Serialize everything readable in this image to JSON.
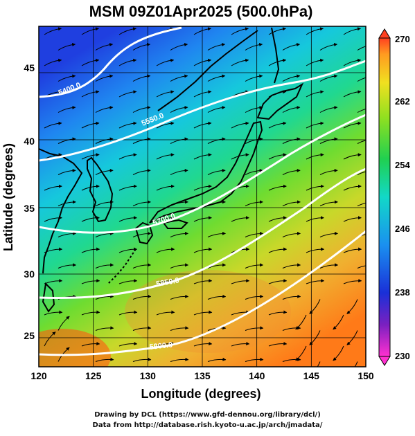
{
  "title": "MSM 09Z01Apr2025 (500.0hPa)",
  "xlabel": "Longitude (degrees)",
  "ylabel": "Latitude  (degrees)",
  "x_ticks": [
    "120",
    "125",
    "130",
    "135",
    "140",
    "145",
    "150"
  ],
  "y_ticks": [
    "25",
    "30",
    "35",
    "40",
    "45"
  ],
  "colorbar_ticks": [
    "270",
    "262",
    "254",
    "246",
    "238",
    "230"
  ],
  "contour_labels": [
    "5400.0",
    "5550.0",
    "5700.0",
    "5850.0",
    "5900.0"
  ],
  "credits": {
    "line1": "Drawing by DCL (https://www.gfd-dennou.org/library/dcl/)",
    "line2": "Data from http://database.rish.kyoto-u.ac.jp/arch/jmadata/"
  },
  "map_data": {
    "type": "heatmap",
    "field": "temperature",
    "lon_range": [
      120,
      150
    ],
    "lat_range": [
      22.5,
      47.5
    ],
    "color_range": [
      230,
      270
    ],
    "contour_levels": [
      5400,
      5550,
      5700,
      5850,
      5900
    ],
    "overlay": "streamlines"
  }
}
